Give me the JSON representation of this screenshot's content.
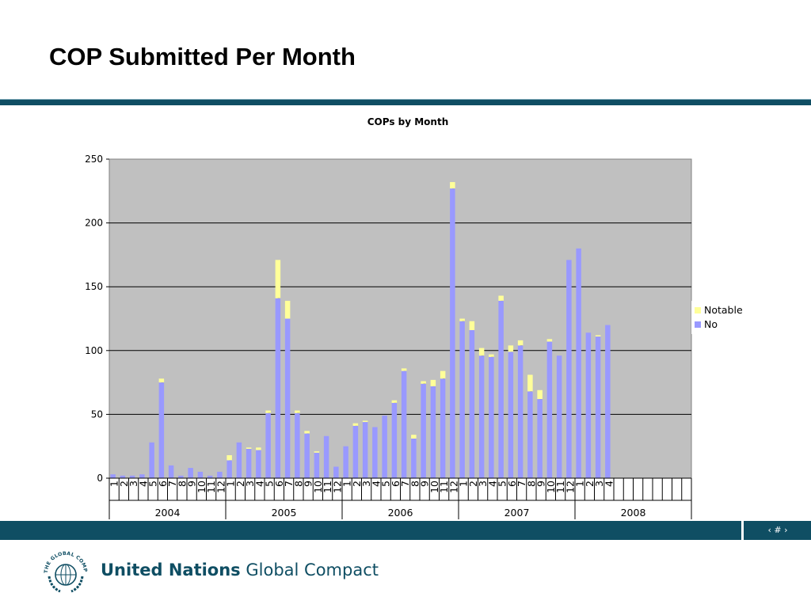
{
  "slide": {
    "title": "COP Submitted Per Month",
    "slide_number": "‹ # ›",
    "logo": {
      "brand_bold": "United Nations",
      "brand_regular": "Global Compact",
      "emblem_text": "THE GLOBAL COMPACT"
    }
  },
  "colors": {
    "no": "#9999ff",
    "notable": "#ffff99",
    "shadow": "#000000",
    "plot_bg": "#c0c0c0",
    "footer": "#0f4e63"
  },
  "chart_data": {
    "type": "bar",
    "stacked": true,
    "title": "COPs by Month",
    "ylim": [
      0,
      250
    ],
    "yticks": [
      0,
      50,
      100,
      150,
      200,
      250
    ],
    "grid": true,
    "legend_position": "right",
    "legend": [
      "Notable",
      "No"
    ],
    "years": [
      {
        "label": "2004",
        "months": 12
      },
      {
        "label": "2005",
        "months": 12
      },
      {
        "label": "2006",
        "months": 12
      },
      {
        "label": "2007",
        "months": 12
      },
      {
        "label": "2008",
        "months": 12
      }
    ],
    "categories": [
      "1",
      "2",
      "3",
      "4",
      "5",
      "6",
      "7",
      "8",
      "9",
      "10",
      "11",
      "12",
      "1",
      "2",
      "3",
      "4",
      "5",
      "6",
      "7",
      "8",
      "9",
      "10",
      "11",
      "12",
      "1",
      "2",
      "3",
      "4",
      "5",
      "6",
      "7",
      "8",
      "9",
      "10",
      "11",
      "12",
      "1",
      "2",
      "3",
      "4",
      "5",
      "6",
      "7",
      "8",
      "9",
      "10",
      "11",
      "12",
      "1",
      "2",
      "3",
      "4",
      "",
      "",
      "",
      "",
      "",
      "",
      "",
      ""
    ],
    "series": [
      {
        "name": "No",
        "values": [
          3,
          2,
          2,
          3,
          28,
          75,
          10,
          2,
          8,
          5,
          2,
          5,
          14,
          28,
          23,
          22,
          51,
          141,
          125,
          51,
          35,
          20,
          33,
          9,
          25,
          41,
          44,
          40,
          49,
          59,
          84,
          31,
          74,
          72,
          78,
          227,
          123,
          116,
          96,
          95,
          139,
          99,
          104,
          68,
          62,
          107,
          96,
          171,
          180,
          114,
          111,
          120,
          null,
          null,
          null,
          null,
          null,
          null,
          null,
          null
        ]
      },
      {
        "name": "Notable",
        "values": [
          0,
          0,
          0,
          0,
          0,
          3,
          0,
          0,
          0,
          0,
          0,
          0,
          4,
          0,
          1,
          2,
          2,
          30,
          14,
          2,
          2,
          1,
          0,
          0,
          0,
          2,
          1,
          0,
          0,
          2,
          2,
          3,
          2,
          5,
          6,
          5,
          2,
          7,
          6,
          2,
          4,
          5,
          4,
          13,
          7,
          2,
          0,
          0,
          0,
          0,
          1,
          0,
          null,
          null,
          null,
          null,
          null,
          null,
          null,
          null
        ]
      }
    ]
  }
}
